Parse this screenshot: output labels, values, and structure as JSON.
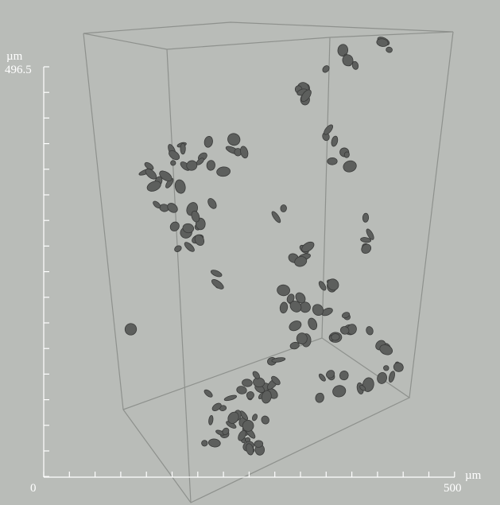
{
  "y_axis": {
    "unit": "µm",
    "max_label": "496.5"
  },
  "x_axis": {
    "min_label": "0",
    "max_label": "500",
    "unit": "µm"
  }
}
